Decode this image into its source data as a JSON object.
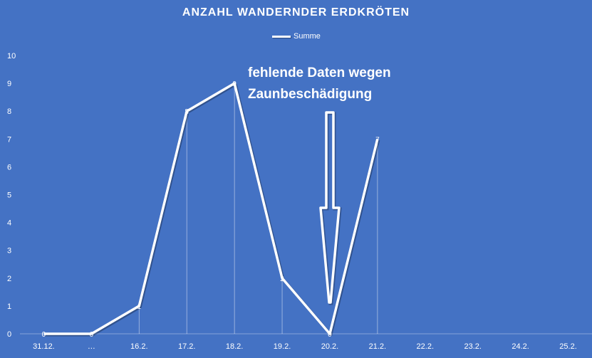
{
  "chart_data": {
    "type": "line",
    "title": "ANZAHL WANDERNDER ERDKRÖTEN",
    "categories": [
      "31.12.",
      "…",
      "16.2.",
      "17.2.",
      "18.2.",
      "19.2.",
      "20.2.",
      "21.2.",
      "22.2.",
      "23.2.",
      "24.2.",
      "25.2."
    ],
    "series": [
      {
        "name": "Summe",
        "values": [
          0,
          0,
          1,
          8,
          9,
          2,
          0,
          7,
          null,
          null,
          null,
          null
        ],
        "color": "#ffffff"
      }
    ],
    "data_labels": [
      "0",
      "0",
      "1",
      "8",
      "9",
      "2",
      "0",
      "7"
    ],
    "y_ticks": [
      "0",
      "1",
      "2",
      "3",
      "4",
      "5",
      "6",
      "7",
      "8",
      "9",
      "10"
    ],
    "ylim": [
      0,
      10
    ],
    "grid": false,
    "drop_lines": true,
    "legend_position": "top",
    "background": "#4472C4",
    "annotation": {
      "lines": [
        "fehlende Daten wegen",
        "Zaunbeschädigung"
      ],
      "arrow_points_to": "20.2."
    }
  }
}
